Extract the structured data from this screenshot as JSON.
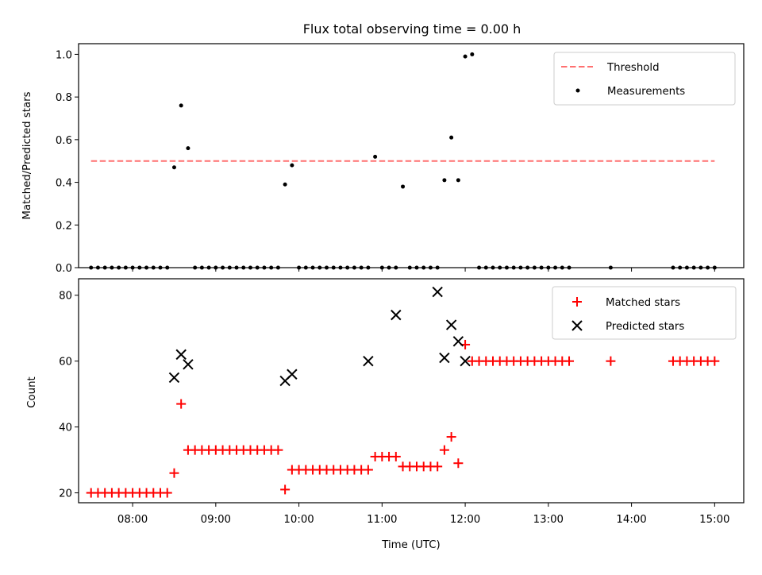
{
  "title": "Flux total observing time = 0.00 h",
  "xlabel": "Time (UTC)",
  "x_ticks": [
    "08:00",
    "09:00",
    "10:00",
    "11:00",
    "12:00",
    "13:00",
    "14:00",
    "15:00"
  ],
  "top": {
    "ylabel": "Matched/Predicted stars",
    "ylim": [
      0,
      1.05
    ],
    "y_ticks": [
      "0.0",
      "0.2",
      "0.4",
      "0.6",
      "0.8",
      "1.0"
    ],
    "legend": {
      "threshold": "Threshold",
      "measurements": "Measurements"
    }
  },
  "bottom": {
    "ylabel": "Count",
    "ylim": [
      17,
      85
    ],
    "y_ticks": [
      "20",
      "40",
      "60",
      "80"
    ],
    "legend": {
      "matched": "Matched stars",
      "predicted": "Predicted stars"
    }
  },
  "colors": {
    "threshold": "#ff7070",
    "measurements": "#000000",
    "matched": "#ff0000",
    "predicted": "#000000"
  },
  "chart_data": [
    {
      "type": "scatter",
      "xlim": [
        "07:21",
        "15:21"
      ],
      "ylim": [
        0,
        1.05
      ],
      "threshold": {
        "value": 0.5,
        "x_range": [
          "07:30",
          "15:00"
        ]
      },
      "measurements": {
        "x": [
          "07:30",
          "07:35",
          "07:40",
          "07:45",
          "07:50",
          "07:55",
          "08:00",
          "08:05",
          "08:10",
          "08:15",
          "08:20",
          "08:25",
          "08:30",
          "08:35",
          "08:40",
          "08:45",
          "08:50",
          "08:55",
          "09:00",
          "09:05",
          "09:10",
          "09:15",
          "09:20",
          "09:25",
          "09:30",
          "09:35",
          "09:40",
          "09:45",
          "09:50",
          "09:55",
          "10:00",
          "10:05",
          "10:10",
          "10:15",
          "10:20",
          "10:25",
          "10:30",
          "10:35",
          "10:40",
          "10:45",
          "10:50",
          "10:55",
          "11:00",
          "11:05",
          "11:10",
          "11:15",
          "11:20",
          "11:25",
          "11:30",
          "11:35",
          "11:40",
          "11:45",
          "11:50",
          "11:55",
          "12:00",
          "12:05",
          "12:10",
          "12:15",
          "12:20",
          "12:25",
          "12:30",
          "12:35",
          "12:40",
          "12:45",
          "12:50",
          "12:55",
          "13:00",
          "13:05",
          "13:10",
          "13:15",
          "13:45",
          "14:30",
          "14:35",
          "14:40",
          "14:45",
          "14:50",
          "14:55",
          "15:00"
        ],
        "y": [
          0,
          0,
          0,
          0,
          0,
          0,
          0,
          0,
          0,
          0,
          0,
          0,
          0.47,
          0.76,
          0.56,
          0,
          0,
          0,
          0,
          0,
          0,
          0,
          0,
          0,
          0,
          0,
          0,
          0,
          0.39,
          0.48,
          0,
          0,
          0,
          0,
          0,
          0,
          0,
          0,
          0,
          0,
          0,
          0.52,
          0,
          0,
          0,
          0.38,
          0,
          0,
          0,
          0,
          0,
          0.41,
          0.61,
          0.41,
          0.99,
          1.0,
          0,
          0,
          0,
          0,
          0,
          0,
          0,
          0,
          0,
          0,
          0,
          0,
          0,
          0,
          0,
          0,
          0,
          0,
          0,
          0,
          0,
          0
        ]
      }
    },
    {
      "type": "scatter",
      "xlim": [
        "07:21",
        "15:21"
      ],
      "ylim": [
        17,
        85
      ],
      "matched": {
        "x": [
          "07:30",
          "07:35",
          "07:40",
          "07:45",
          "07:50",
          "07:55",
          "08:00",
          "08:05",
          "08:10",
          "08:15",
          "08:20",
          "08:25",
          "08:30",
          "08:35",
          "08:40",
          "08:45",
          "08:50",
          "08:55",
          "09:00",
          "09:05",
          "09:10",
          "09:15",
          "09:20",
          "09:25",
          "09:30",
          "09:35",
          "09:40",
          "09:45",
          "09:50",
          "09:55",
          "10:00",
          "10:05",
          "10:10",
          "10:15",
          "10:20",
          "10:25",
          "10:30",
          "10:35",
          "10:40",
          "10:45",
          "10:50",
          "10:55",
          "11:00",
          "11:05",
          "11:10",
          "11:15",
          "11:20",
          "11:25",
          "11:30",
          "11:35",
          "11:40",
          "11:45",
          "11:50",
          "11:55",
          "12:00",
          "12:05",
          "12:10",
          "12:15",
          "12:20",
          "12:25",
          "12:30",
          "12:35",
          "12:40",
          "12:45",
          "12:50",
          "12:55",
          "13:00",
          "13:05",
          "13:10",
          "13:15",
          "13:45",
          "14:30",
          "14:35",
          "14:40",
          "14:45",
          "14:50",
          "14:55",
          "15:00"
        ],
        "y": [
          20,
          20,
          20,
          20,
          20,
          20,
          20,
          20,
          20,
          20,
          20,
          20,
          26,
          47,
          33,
          33,
          33,
          33,
          33,
          33,
          33,
          33,
          33,
          33,
          33,
          33,
          33,
          33,
          21,
          27,
          27,
          27,
          27,
          27,
          27,
          27,
          27,
          27,
          27,
          27,
          27,
          31,
          31,
          31,
          31,
          28,
          28,
          28,
          28,
          28,
          28,
          33,
          37,
          29,
          65,
          60,
          60,
          60,
          60,
          60,
          60,
          60,
          60,
          60,
          60,
          60,
          60,
          60,
          60,
          60,
          60,
          60,
          60,
          60,
          60,
          60,
          60,
          60
        ]
      },
      "predicted": {
        "x": [
          "08:30",
          "08:35",
          "08:40",
          "09:50",
          "09:55",
          "10:50",
          "11:10",
          "11:40",
          "11:45",
          "11:50",
          "11:55",
          "12:00"
        ],
        "y": [
          55,
          62,
          59,
          54,
          56,
          60,
          74,
          81,
          61,
          71,
          66,
          60
        ]
      }
    }
  ]
}
